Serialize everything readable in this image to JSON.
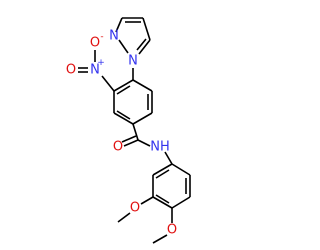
{
  "atoms": [
    {
      "label": "N"
    },
    {
      "label": "N"
    },
    {
      "label": "N",
      "charge": "+"
    },
    {
      "label": "O",
      "charge": "-"
    },
    {
      "label": "O"
    },
    {
      "label": "O"
    },
    {
      "label": "NH"
    },
    {
      "label": "O"
    },
    {
      "label": "O"
    }
  ]
}
